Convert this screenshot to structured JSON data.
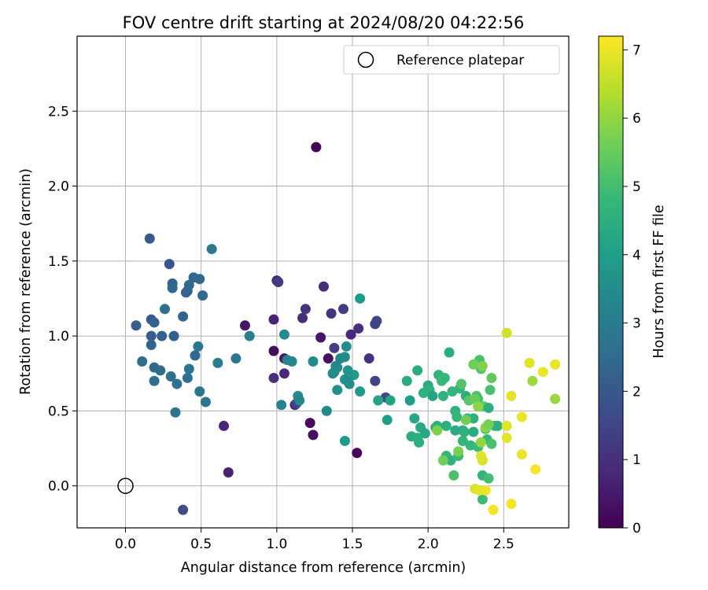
{
  "chart_data": {
    "type": "scatter",
    "title": "FOV centre drift starting at 2024/08/20 04:22:56",
    "xlabel": "Angular distance from reference (arcmin)",
    "ylabel": "Rotation from reference (arcmin)",
    "xlim": [
      -0.32,
      2.93
    ],
    "ylim": [
      -0.28,
      3.0
    ],
    "xticks": [
      "0.0",
      "0.5",
      "1.0",
      "1.5",
      "2.0",
      "2.5"
    ],
    "yticks": [
      "0.0",
      "0.5",
      "1.0",
      "1.5",
      "2.0",
      "2.5"
    ],
    "grid": true,
    "legend": {
      "position": "top-right",
      "entries": [
        "Reference platepar"
      ]
    },
    "reference_point": {
      "x": 0.0,
      "y": 0.0
    },
    "colorbar": {
      "label": "Hours from first FF file",
      "range": [
        0,
        7.2
      ],
      "ticks": [
        "0",
        "1",
        "2",
        "3",
        "4",
        "5",
        "6",
        "7"
      ],
      "colormap": "viridis"
    },
    "points": [
      {
        "x": 1.26,
        "y": 2.26,
        "c": 0.1
      },
      {
        "x": 1.53,
        "y": 0.22,
        "c": 0.1
      },
      {
        "x": 1.22,
        "y": 0.42,
        "c": 0.2
      },
      {
        "x": 1.24,
        "y": 0.34,
        "c": 0.3
      },
      {
        "x": 0.98,
        "y": 0.9,
        "c": 0.2
      },
      {
        "x": 1.34,
        "y": 0.85,
        "c": 0.3
      },
      {
        "x": 0.79,
        "y": 1.07,
        "c": 0.4
      },
      {
        "x": 1.05,
        "y": 0.85,
        "c": 0.5
      },
      {
        "x": 1.29,
        "y": 0.99,
        "c": 0.4
      },
      {
        "x": 0.68,
        "y": 0.09,
        "c": 0.7
      },
      {
        "x": 0.65,
        "y": 0.4,
        "c": 0.8
      },
      {
        "x": 0.98,
        "y": 1.11,
        "c": 0.7
      },
      {
        "x": 1.0,
        "y": 1.37,
        "c": 0.8
      },
      {
        "x": 1.05,
        "y": 0.75,
        "c": 0.8
      },
      {
        "x": 1.12,
        "y": 0.54,
        "c": 0.9
      },
      {
        "x": 1.17,
        "y": 1.12,
        "c": 0.9
      },
      {
        "x": 1.31,
        "y": 1.33,
        "c": 0.9
      },
      {
        "x": 1.49,
        "y": 1.01,
        "c": 0.8
      },
      {
        "x": 0.98,
        "y": 0.72,
        "c": 1.0
      },
      {
        "x": 1.19,
        "y": 1.18,
        "c": 1.1
      },
      {
        "x": 1.36,
        "y": 1.15,
        "c": 1.1
      },
      {
        "x": 1.54,
        "y": 1.05,
        "c": 1.0
      },
      {
        "x": 1.61,
        "y": 0.85,
        "c": 1.1
      },
      {
        "x": 1.01,
        "y": 1.36,
        "c": 1.2
      },
      {
        "x": 1.38,
        "y": 0.92,
        "c": 1.3
      },
      {
        "x": 1.44,
        "y": 1.18,
        "c": 1.3
      },
      {
        "x": 1.65,
        "y": 1.08,
        "c": 1.4
      },
      {
        "x": 1.66,
        "y": 1.1,
        "c": 1.5
      },
      {
        "x": 1.65,
        "y": 0.7,
        "c": 1.4
      },
      {
        "x": 1.72,
        "y": 0.59,
        "c": 1.6
      },
      {
        "x": 1.13,
        "y": 0.55,
        "c": 1.5
      },
      {
        "x": 0.38,
        "y": -0.16,
        "c": 1.7
      },
      {
        "x": 0.16,
        "y": 1.65,
        "c": 2.0
      },
      {
        "x": 0.29,
        "y": 1.48,
        "c": 1.9
      },
      {
        "x": 0.17,
        "y": 1.11,
        "c": 2.0
      },
      {
        "x": 0.07,
        "y": 1.07,
        "c": 2.1
      },
      {
        "x": 0.17,
        "y": 1.0,
        "c": 2.1
      },
      {
        "x": 0.24,
        "y": 1.0,
        "c": 2.2
      },
      {
        "x": 0.32,
        "y": 1.0,
        "c": 2.2
      },
      {
        "x": 0.19,
        "y": 1.09,
        "c": 2.2
      },
      {
        "x": 0.17,
        "y": 0.94,
        "c": 2.3
      },
      {
        "x": 0.31,
        "y": 1.35,
        "c": 2.3
      },
      {
        "x": 0.31,
        "y": 1.32,
        "c": 2.4
      },
      {
        "x": 0.38,
        "y": 1.13,
        "c": 2.3
      },
      {
        "x": 0.4,
        "y": 1.29,
        "c": 2.2
      },
      {
        "x": 0.41,
        "y": 1.3,
        "c": 2.3
      },
      {
        "x": 0.42,
        "y": 1.34,
        "c": 2.4
      },
      {
        "x": 0.45,
        "y": 1.39,
        "c": 2.5
      },
      {
        "x": 0.49,
        "y": 1.38,
        "c": 2.4
      },
      {
        "x": 0.51,
        "y": 1.27,
        "c": 2.4
      },
      {
        "x": 0.26,
        "y": 1.18,
        "c": 2.6
      },
      {
        "x": 0.57,
        "y": 1.58,
        "c": 2.9
      },
      {
        "x": 0.11,
        "y": 0.83,
        "c": 2.6
      },
      {
        "x": 0.19,
        "y": 0.79,
        "c": 2.5
      },
      {
        "x": 0.23,
        "y": 0.77,
        "c": 2.5
      },
      {
        "x": 0.19,
        "y": 0.7,
        "c": 2.6
      },
      {
        "x": 0.3,
        "y": 0.73,
        "c": 2.7
      },
      {
        "x": 0.34,
        "y": 0.68,
        "c": 2.7
      },
      {
        "x": 0.33,
        "y": 0.49,
        "c": 2.8
      },
      {
        "x": 0.42,
        "y": 0.78,
        "c": 2.8
      },
      {
        "x": 0.41,
        "y": 0.72,
        "c": 2.6
      },
      {
        "x": 0.46,
        "y": 0.87,
        "c": 2.4
      },
      {
        "x": 0.48,
        "y": 0.93,
        "c": 2.9
      },
      {
        "x": 0.49,
        "y": 0.63,
        "c": 2.9
      },
      {
        "x": 0.53,
        "y": 0.56,
        "c": 2.8
      },
      {
        "x": 0.61,
        "y": 0.82,
        "c": 3.1
      },
      {
        "x": 0.73,
        "y": 0.85,
        "c": 2.8
      },
      {
        "x": 0.82,
        "y": 1.0,
        "c": 3.1
      },
      {
        "x": 1.03,
        "y": 0.54,
        "c": 3.2
      },
      {
        "x": 1.05,
        "y": 1.01,
        "c": 3.4
      },
      {
        "x": 1.07,
        "y": 0.84,
        "c": 3.2
      },
      {
        "x": 1.1,
        "y": 0.83,
        "c": 3.3
      },
      {
        "x": 1.14,
        "y": 0.6,
        "c": 3.5
      },
      {
        "x": 1.15,
        "y": 0.57,
        "c": 3.3
      },
      {
        "x": 1.24,
        "y": 0.83,
        "c": 3.4
      },
      {
        "x": 1.33,
        "y": 0.5,
        "c": 3.4
      },
      {
        "x": 1.37,
        "y": 0.75,
        "c": 3.3
      },
      {
        "x": 1.39,
        "y": 0.8,
        "c": 3.4
      },
      {
        "x": 1.4,
        "y": 0.79,
        "c": 3.3
      },
      {
        "x": 1.38,
        "y": 0.76,
        "c": 3.5
      },
      {
        "x": 1.4,
        "y": 0.64,
        "c": 3.6
      },
      {
        "x": 1.42,
        "y": 0.85,
        "c": 3.3
      },
      {
        "x": 1.45,
        "y": 0.86,
        "c": 3.5
      },
      {
        "x": 1.46,
        "y": 0.93,
        "c": 3.5
      },
      {
        "x": 1.45,
        "y": 0.71,
        "c": 3.7
      },
      {
        "x": 1.47,
        "y": 0.77,
        "c": 3.7
      },
      {
        "x": 1.47,
        "y": 0.7,
        "c": 3.5
      },
      {
        "x": 1.48,
        "y": 0.68,
        "c": 3.5
      },
      {
        "x": 1.51,
        "y": 0.74,
        "c": 3.8
      },
      {
        "x": 1.55,
        "y": 1.25,
        "c": 3.9
      },
      {
        "x": 1.55,
        "y": 0.63,
        "c": 3.9
      },
      {
        "x": 1.45,
        "y": 0.3,
        "c": 3.9
      },
      {
        "x": 1.67,
        "y": 0.57,
        "c": 4.2
      },
      {
        "x": 1.73,
        "y": 0.44,
        "c": 4.0
      },
      {
        "x": 1.75,
        "y": 0.57,
        "c": 4.2
      },
      {
        "x": 1.86,
        "y": 0.7,
        "c": 4.4
      },
      {
        "x": 1.88,
        "y": 0.57,
        "c": 4.0
      },
      {
        "x": 1.89,
        "y": 0.33,
        "c": 4.4
      },
      {
        "x": 1.91,
        "y": 0.45,
        "c": 4.3
      },
      {
        "x": 1.93,
        "y": 0.77,
        "c": 4.4
      },
      {
        "x": 1.93,
        "y": 0.32,
        "c": 4.5
      },
      {
        "x": 1.94,
        "y": 0.29,
        "c": 4.5
      },
      {
        "x": 1.95,
        "y": 0.39,
        "c": 4.4
      },
      {
        "x": 1.97,
        "y": 0.62,
        "c": 4.6
      },
      {
        "x": 1.98,
        "y": 0.35,
        "c": 4.3
      },
      {
        "x": 2.0,
        "y": 0.67,
        "c": 4.4
      },
      {
        "x": 2.01,
        "y": 0.64,
        "c": 4.6
      },
      {
        "x": 2.03,
        "y": 0.6,
        "c": 4.2
      },
      {
        "x": 2.05,
        "y": 0.39,
        "c": 4.3
      },
      {
        "x": 2.06,
        "y": 0.4,
        "c": 4.5
      },
      {
        "x": 2.07,
        "y": 0.74,
        "c": 4.7
      },
      {
        "x": 2.09,
        "y": 0.7,
        "c": 4.9
      },
      {
        "x": 2.1,
        "y": 0.6,
        "c": 4.6
      },
      {
        "x": 2.11,
        "y": 0.72,
        "c": 4.8
      },
      {
        "x": 2.12,
        "y": 0.4,
        "c": 4.5
      },
      {
        "x": 2.12,
        "y": 0.2,
        "c": 4.7
      },
      {
        "x": 2.14,
        "y": 0.89,
        "c": 4.4
      },
      {
        "x": 2.15,
        "y": 0.17,
        "c": 4.6
      },
      {
        "x": 2.16,
        "y": 0.63,
        "c": 4.7
      },
      {
        "x": 2.17,
        "y": 0.07,
        "c": 5.1
      },
      {
        "x": 2.18,
        "y": 0.5,
        "c": 4.6
      },
      {
        "x": 2.18,
        "y": 0.37,
        "c": 4.4
      },
      {
        "x": 2.19,
        "y": 0.46,
        "c": 4.8
      },
      {
        "x": 2.2,
        "y": 0.2,
        "c": 4.9
      },
      {
        "x": 2.21,
        "y": 0.65,
        "c": 4.7
      },
      {
        "x": 2.22,
        "y": 0.68,
        "c": 5.2
      },
      {
        "x": 2.23,
        "y": 0.3,
        "c": 4.8
      },
      {
        "x": 2.23,
        "y": 0.37,
        "c": 4.4
      },
      {
        "x": 2.24,
        "y": 0.36,
        "c": 4.6
      },
      {
        "x": 2.25,
        "y": 0.6,
        "c": 4.5
      },
      {
        "x": 2.26,
        "y": 0.45,
        "c": 4.7
      },
      {
        "x": 2.27,
        "y": 0.57,
        "c": 5.3
      },
      {
        "x": 2.28,
        "y": 0.27,
        "c": 4.8
      },
      {
        "x": 2.3,
        "y": 0.45,
        "c": 4.6
      },
      {
        "x": 2.3,
        "y": 0.36,
        "c": 4.4
      },
      {
        "x": 2.32,
        "y": 0.6,
        "c": 5.2
      },
      {
        "x": 2.33,
        "y": 0.58,
        "c": 5.0
      },
      {
        "x": 2.33,
        "y": 0.26,
        "c": 4.9
      },
      {
        "x": 2.34,
        "y": 0.84,
        "c": 5.1
      },
      {
        "x": 2.35,
        "y": 0.78,
        "c": 5.2
      },
      {
        "x": 2.36,
        "y": 0.07,
        "c": 4.7
      },
      {
        "x": 2.36,
        "y": -0.09,
        "c": 4.9
      },
      {
        "x": 2.37,
        "y": 0.53,
        "c": 5.4
      },
      {
        "x": 2.38,
        "y": 0.38,
        "c": 5.0
      },
      {
        "x": 2.39,
        "y": 0.31,
        "c": 4.7
      },
      {
        "x": 2.4,
        "y": 0.52,
        "c": 4.5
      },
      {
        "x": 2.4,
        "y": 0.05,
        "c": 5.0
      },
      {
        "x": 2.41,
        "y": 0.64,
        "c": 5.1
      },
      {
        "x": 2.42,
        "y": 0.72,
        "c": 5.4
      },
      {
        "x": 2.42,
        "y": 0.28,
        "c": 5.1
      },
      {
        "x": 2.44,
        "y": 0.4,
        "c": 4.9
      },
      {
        "x": 2.46,
        "y": 0.4,
        "c": 4.5
      },
      {
        "x": 2.1,
        "y": 0.17,
        "c": 5.6
      },
      {
        "x": 2.06,
        "y": 0.37,
        "c": 5.8
      },
      {
        "x": 2.2,
        "y": 0.23,
        "c": 5.7
      },
      {
        "x": 2.25,
        "y": 0.44,
        "c": 5.6
      },
      {
        "x": 2.3,
        "y": 0.81,
        "c": 5.6
      },
      {
        "x": 2.31,
        "y": 0.58,
        "c": 5.5
      },
      {
        "x": 2.36,
        "y": 0.8,
        "c": 5.8
      },
      {
        "x": 2.38,
        "y": 0.39,
        "c": 5.9
      },
      {
        "x": 2.4,
        "y": 0.41,
        "c": 5.7
      },
      {
        "x": 2.33,
        "y": 0.53,
        "c": 5.9
      },
      {
        "x": 2.35,
        "y": 0.29,
        "c": 6.0
      },
      {
        "x": 2.52,
        "y": 1.02,
        "c": 6.7
      },
      {
        "x": 2.69,
        "y": 0.7,
        "c": 6.1
      },
      {
        "x": 2.84,
        "y": 0.58,
        "c": 6.1
      },
      {
        "x": 2.55,
        "y": 0.6,
        "c": 6.9
      },
      {
        "x": 2.67,
        "y": 0.82,
        "c": 6.9
      },
      {
        "x": 2.76,
        "y": 0.76,
        "c": 7.0
      },
      {
        "x": 2.84,
        "y": 0.81,
        "c": 7.0
      },
      {
        "x": 2.62,
        "y": 0.46,
        "c": 7.0
      },
      {
        "x": 2.52,
        "y": 0.4,
        "c": 6.9
      },
      {
        "x": 2.52,
        "y": 0.32,
        "c": 6.9
      },
      {
        "x": 2.62,
        "y": 0.21,
        "c": 7.0
      },
      {
        "x": 2.71,
        "y": 0.11,
        "c": 7.1
      },
      {
        "x": 2.55,
        "y": -0.12,
        "c": 7.1
      },
      {
        "x": 2.43,
        "y": -0.16,
        "c": 7.1
      },
      {
        "x": 2.35,
        "y": 0.2,
        "c": 6.9
      },
      {
        "x": 2.36,
        "y": 0.17,
        "c": 6.8
      },
      {
        "x": 2.31,
        "y": -0.02,
        "c": 6.8
      },
      {
        "x": 2.34,
        "y": -0.03,
        "c": 6.9
      },
      {
        "x": 2.38,
        "y": -0.03,
        "c": 7.0
      }
    ]
  }
}
